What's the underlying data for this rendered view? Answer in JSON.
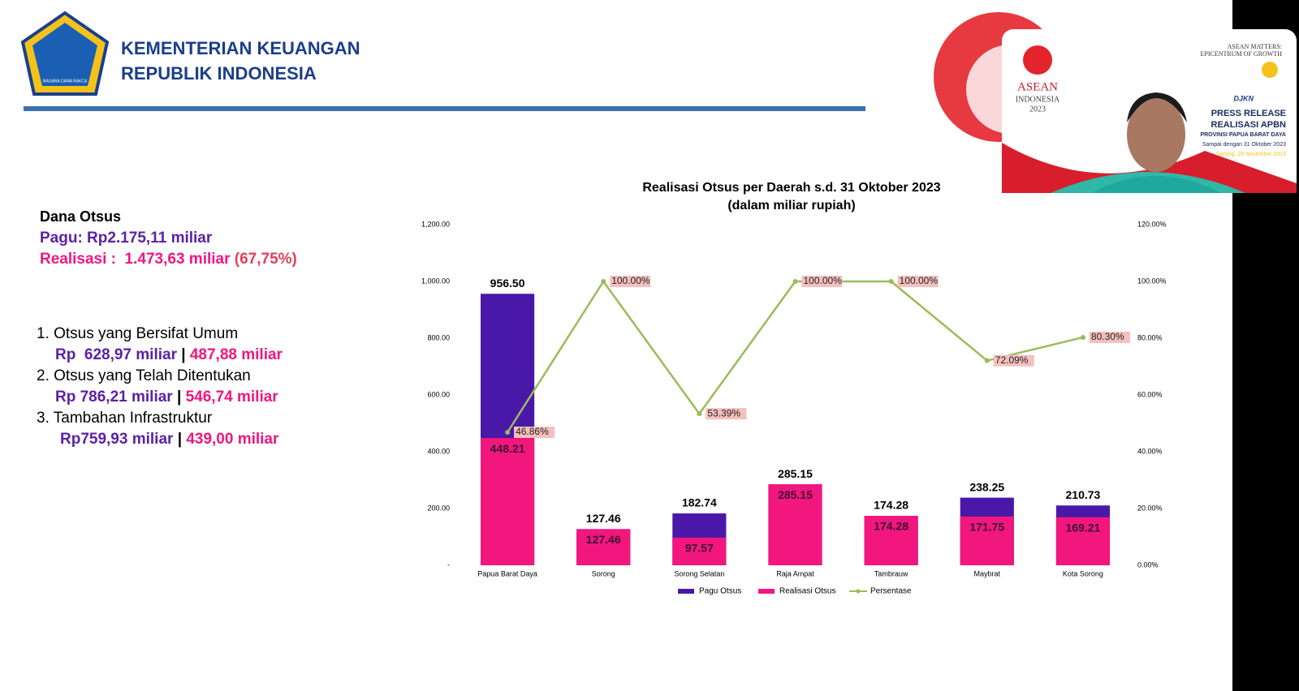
{
  "header": {
    "title_line1": "KEMENTERIAN KEUANGAN",
    "title_line2": "REPUBLIK INDONESIA",
    "logo_text": "NAGARA DANA RAKCA"
  },
  "summary": {
    "heading": "Dana Otsus",
    "pagu": "Pagu: Rp2.175,11 miliar",
    "realisasi_label": "Realisasi :  1.473,63 miliar",
    "realisasi_pct": "(67,75%)",
    "separator": "|",
    "items": [
      {
        "title": "1. Otsus yang Bersifat Umum",
        "pagu": "Rp  628,97 miliar",
        "realisasi": "487,88 miliar"
      },
      {
        "title": "2. Otsus yang Telah Ditentukan",
        "pagu": "Rp 786,21 miliar",
        "realisasi": "546,74 miliar"
      },
      {
        "title": "3. Tambahan Infrastruktur",
        "pagu": "Rp759,93 miliar",
        "realisasi": "439,00 miliar"
      }
    ]
  },
  "video_overlay": {
    "asean": "ASEAN",
    "indonesia": "INDONESIA",
    "year": "2023",
    "tagline1": "ASEAN MATTERS:",
    "tagline2": "EPICENTRUM OF GROWTH",
    "release1": "PRESS RELEASE",
    "release2": "REALISASI APBN",
    "province": "PROVINSI PAPUA BARAT DAYA",
    "period": "Sampai dengan 31 Oktober 2023",
    "place": "Sorong, 28 November 2023",
    "djkn": "DJKN"
  },
  "chart_data": {
    "type": "bar",
    "title": "Realisasi Otsus per Daerah s.d. 31 Oktober 2023",
    "subtitle": "(dalam miliar rupiah)",
    "categories": [
      "Papua Barat Daya",
      "Sorong",
      "Sorong Selatan",
      "Raja Ampat",
      "Tambrauw",
      "Maybrat",
      "Kota Sorong"
    ],
    "series": [
      {
        "name": "Pagu  Otsus",
        "color": "#4a18a8",
        "values": [
          956.5,
          127.46,
          182.74,
          285.15,
          174.28,
          238.25,
          210.73
        ],
        "value_labels": [
          "956.50",
          "127.46",
          "182.74",
          "285.15",
          "174.28",
          "238.25",
          "210.73"
        ]
      },
      {
        "name": "Realisasi Otsus",
        "color": "#f2167f",
        "values": [
          448.21,
          127.46,
          97.57,
          285.15,
          174.28,
          171.75,
          169.21
        ],
        "value_labels": [
          "448.21",
          "127.46",
          "97.57",
          "285.15",
          "174.28",
          "171.75",
          "169.21"
        ]
      },
      {
        "name": "Persentase",
        "type": "line",
        "axis": "y2",
        "color": "#9bbb59",
        "values": [
          46.86,
          100,
          53.39,
          100,
          100,
          72.09,
          80.3
        ],
        "value_labels": [
          "46.86%",
          "100.00%",
          "53.39%",
          "100.00%",
          "100.00%",
          "72.09%",
          "80.30%"
        ]
      }
    ],
    "ylim": [
      0,
      1200
    ],
    "yticks": [
      {
        "value": 0,
        "label": "-"
      },
      {
        "value": 200,
        "label": "200.00"
      },
      {
        "value": 400,
        "label": "400.00"
      },
      {
        "value": 600,
        "label": "600.00"
      },
      {
        "value": 800,
        "label": "800.00"
      },
      {
        "value": 1000,
        "label": "1,000.00"
      },
      {
        "value": 1200,
        "label": "1,200.00"
      }
    ],
    "y2lim": [
      0,
      120
    ],
    "y2ticks": [
      {
        "value": 0,
        "label": "0.00%"
      },
      {
        "value": 20,
        "label": "20.00%"
      },
      {
        "value": 40,
        "label": "40.00%"
      },
      {
        "value": 60,
        "label": "60.00%"
      },
      {
        "value": 80,
        "label": "80.00%"
      },
      {
        "value": 100,
        "label": "100.00%"
      },
      {
        "value": 120,
        "label": "120.00%"
      }
    ],
    "grid": false,
    "legend": "bottom"
  }
}
